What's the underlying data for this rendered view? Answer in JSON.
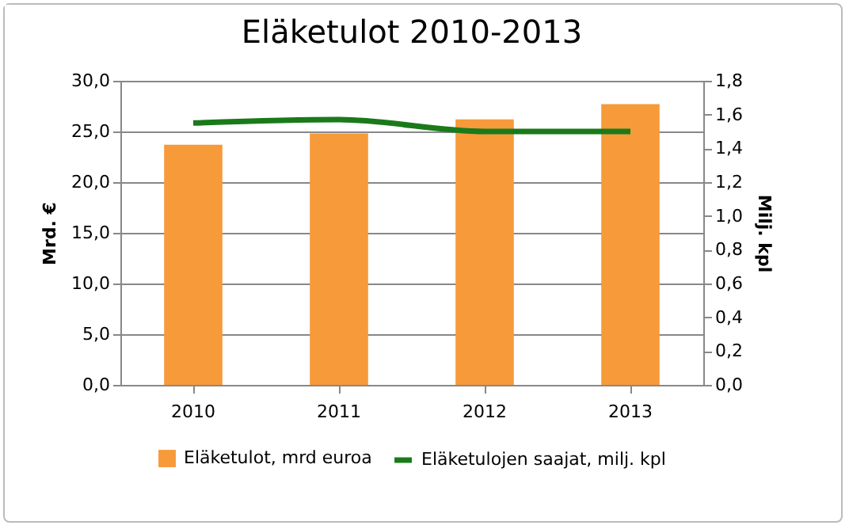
{
  "chart_data": {
    "type": "bar",
    "title": "Eläketulot 2010-2013",
    "categories": [
      "2010",
      "2011",
      "2012",
      "2013"
    ],
    "series": [
      {
        "name": "Eläketulot, mrd  euroa",
        "color": "#f79a3a",
        "values": [
          23.7,
          24.8,
          26.2,
          27.7
        ]
      },
      {
        "name": "Eläketulojen saajat, milj. kpl",
        "type": "line",
        "axis": "y2",
        "color": "#1a7a1a",
        "values": [
          1.55,
          1.57,
          1.5,
          1.5
        ]
      }
    ],
    "ylabel": "Mrd. €",
    "y2label": "Milj. kpl",
    "ylim": [
      0,
      30
    ],
    "yticks": [
      {
        "value": 0,
        "label": "0,0"
      },
      {
        "value": 5,
        "label": "5,0"
      },
      {
        "value": 10,
        "label": "10,0"
      },
      {
        "value": 15,
        "label": "15,0"
      },
      {
        "value": 20,
        "label": "20,0"
      },
      {
        "value": 25,
        "label": "25,0"
      },
      {
        "value": 30,
        "label": "30,0"
      }
    ],
    "y2lim": [
      0,
      1.8
    ],
    "y2ticks": [
      {
        "value": 0,
        "label": "0,0"
      },
      {
        "value": 0.2,
        "label": "0,2"
      },
      {
        "value": 0.4,
        "label": "0,4"
      },
      {
        "value": 0.6,
        "label": "0,6"
      },
      {
        "value": 0.8,
        "label": "0,8"
      },
      {
        "value": 1,
        "label": "1,0"
      },
      {
        "value": 1.2,
        "label": "1,2"
      },
      {
        "value": 1.4,
        "label": "1,4"
      },
      {
        "value": 1.6,
        "label": "1,6"
      },
      {
        "value": 1.8,
        "label": "1,8"
      }
    ],
    "grid": "y",
    "legend": "bottom"
  }
}
